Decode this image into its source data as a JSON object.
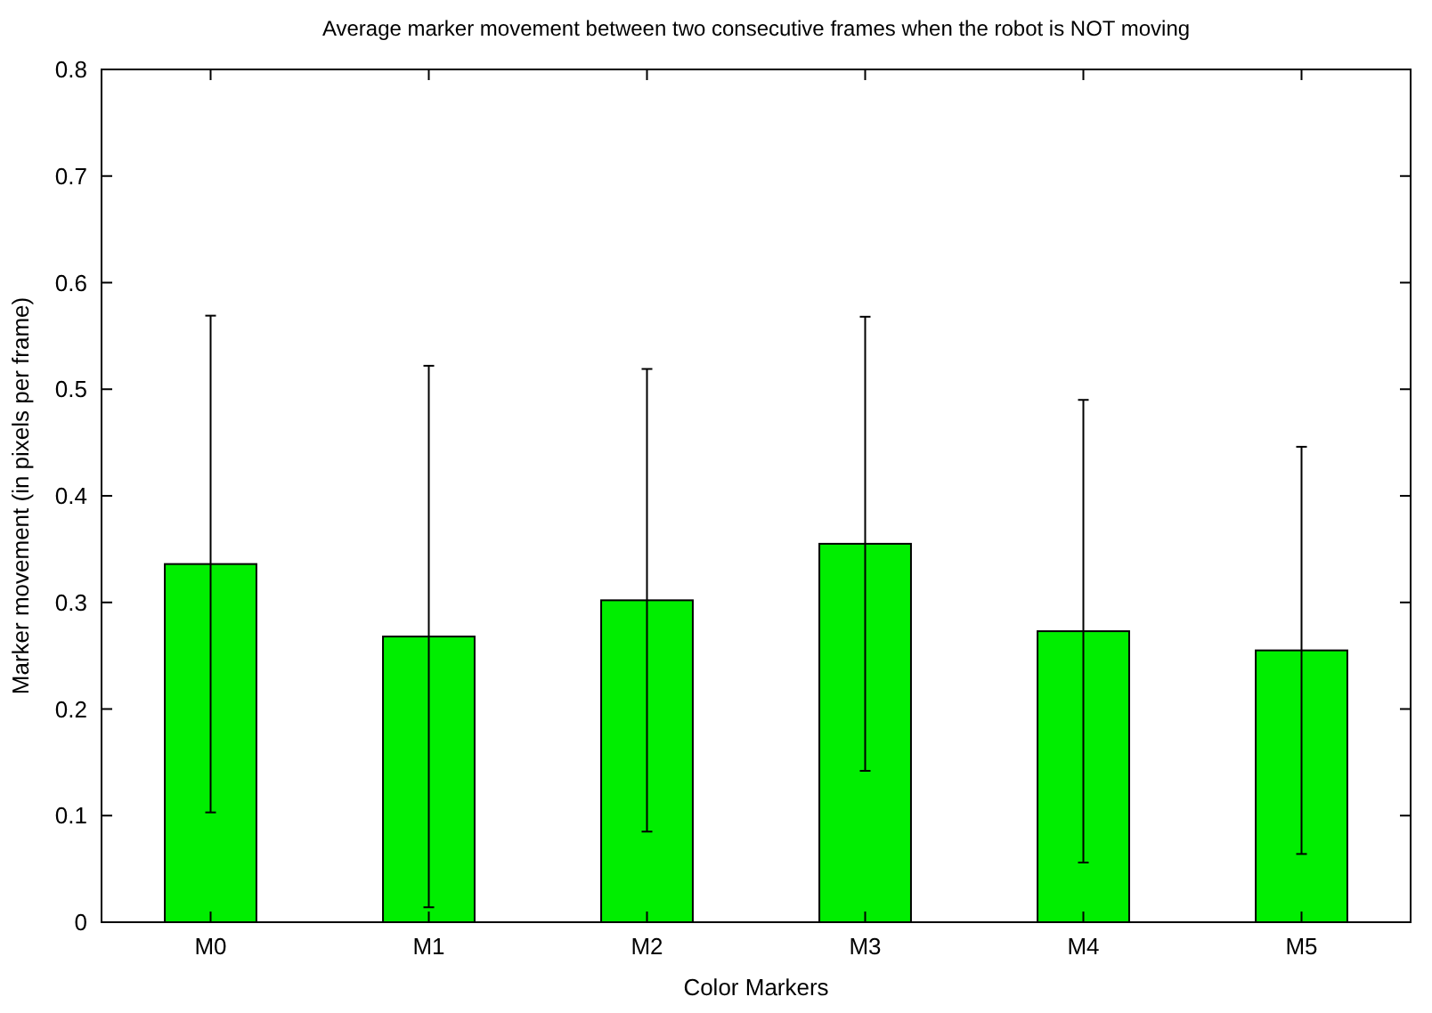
{
  "chart_data": {
    "type": "bar",
    "title": "Average marker movement between two consecutive frames when the robot is NOT moving",
    "xlabel": "Color Markers",
    "ylabel": "Marker movement (in pixels per frame)",
    "categories": [
      "M0",
      "M1",
      "M2",
      "M3",
      "M4",
      "M5"
    ],
    "values": [
      0.336,
      0.268,
      0.302,
      0.355,
      0.273,
      0.255
    ],
    "errors": [
      0.233,
      0.254,
      0.217,
      0.213,
      0.217,
      0.191
    ],
    "color": "#00ee00",
    "ylim": [
      0,
      0.8
    ],
    "yticks": [
      0,
      0.1,
      0.2,
      0.3,
      0.4,
      0.5,
      0.6,
      0.7,
      0.8
    ],
    "grid": false
  }
}
